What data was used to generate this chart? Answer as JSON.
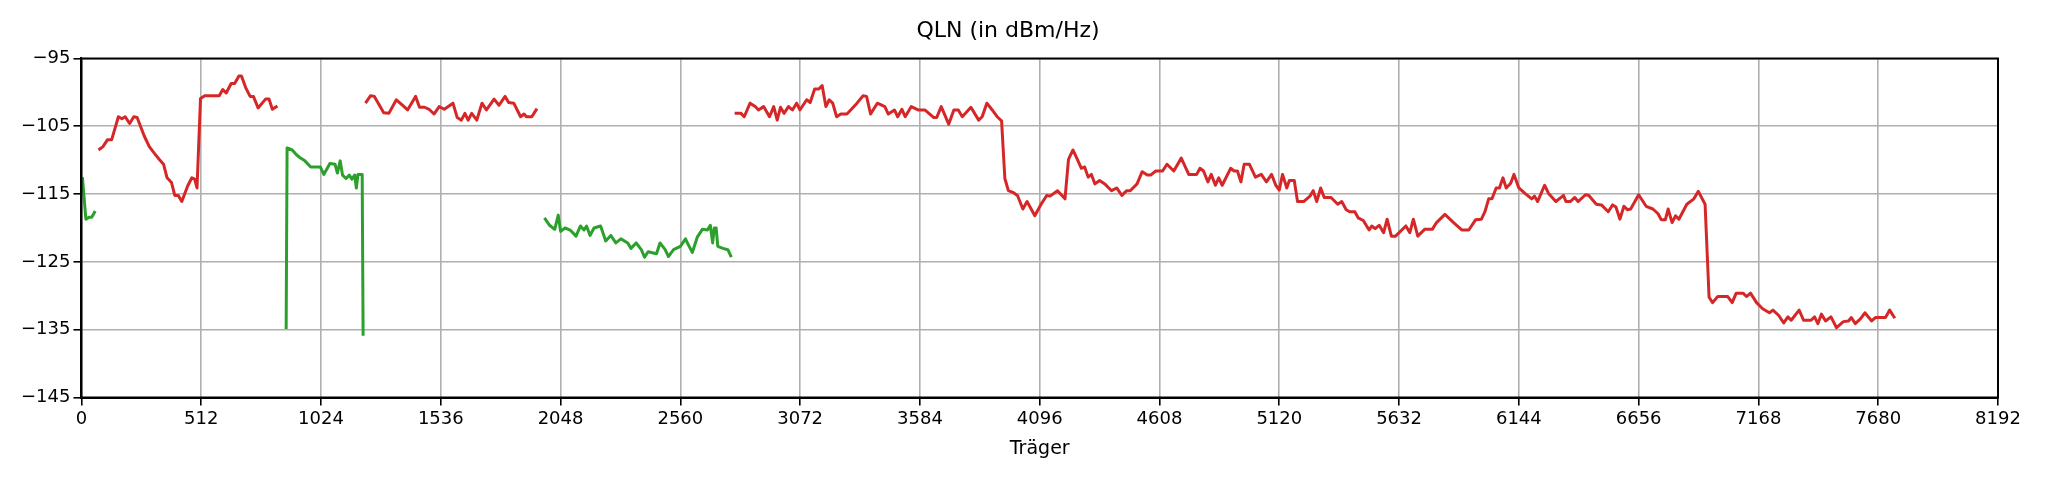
{
  "chart_data": {
    "type": "line",
    "title": "QLN (in dBm/Hz)",
    "xlabel": "Träger",
    "xlim": [
      0,
      8192
    ],
    "xticks": [
      0,
      512,
      1024,
      1536,
      2048,
      2560,
      3072,
      3584,
      4096,
      4608,
      5120,
      5632,
      6144,
      6656,
      7168,
      7680,
      8192
    ],
    "ylim": [
      -145,
      -95
    ],
    "yticks": [
      {
        "value": -145,
        "label": "−145"
      },
      {
        "value": -135,
        "label": "−135"
      },
      {
        "value": -125,
        "label": "−125"
      },
      {
        "value": -115,
        "label": "−115"
      },
      {
        "value": -105,
        "label": "−105"
      },
      {
        "value": -95,
        "label": "−95"
      }
    ],
    "grid": true,
    "legend": false,
    "series": [
      {
        "color": "#2ca02c",
        "x": [
          4,
          19,
          34,
          44,
          59,
          400,
          875,
          879,
          901,
          919,
          933,
          955,
          980,
          1021,
          1036,
          1062,
          1084,
          1094,
          1106,
          1116,
          1131,
          1145,
          1156,
          1168,
          1175,
          1182,
          1200,
          1204,
          1600,
          1979,
          2001,
          2023,
          2038,
          2048,
          2067,
          2089,
          2114,
          2133,
          2148,
          2159,
          2174,
          2191,
          2219,
          2241,
          2263,
          2284,
          2306,
          2335,
          2349,
          2371,
          2393,
          2407,
          2422,
          2458,
          2473,
          2495,
          2509,
          2531,
          2560,
          2582,
          2593,
          2611,
          2633,
          2654,
          2676,
          2688,
          2698,
          2705,
          2713,
          2720,
          2742,
          2763,
          2778
        ],
        "values": [
          -112.5,
          -118.7,
          -118.4,
          -118.4,
          -117.5,
          null,
          -134.9,
          -108.2,
          -108.5,
          -109.2,
          -109.6,
          -110.1,
          -111.0,
          -111.0,
          -112.1,
          -110.5,
          -110.6,
          -111.9,
          -110.1,
          -112.2,
          -112.7,
          -112.2,
          -112.8,
          -112.2,
          -114.1,
          -112.1,
          -112.1,
          -135.9,
          null,
          -118.5,
          -119.6,
          -120.2,
          -118.1,
          -120.5,
          -120.0,
          -120.3,
          -121.2,
          -119.7,
          -120.3,
          -119.7,
          -121.1,
          -120.0,
          -119.7,
          -121.9,
          -121.1,
          -122.2,
          -121.6,
          -122.2,
          -123.0,
          -122.2,
          -123.2,
          -124.3,
          -123.5,
          -123.8,
          -122.2,
          -123.2,
          -124.2,
          -123.2,
          -122.7,
          -121.6,
          -122.4,
          -123.6,
          -121.3,
          -120.2,
          -120.3,
          -119.6,
          -122.2,
          -120.0,
          -120.0,
          -122.7,
          -123.0,
          -123.2,
          -124.3
        ]
      },
      {
        "color": "#d62728",
        "x": [
          73,
          92,
          111,
          129,
          158,
          173,
          187,
          206,
          224,
          238,
          268,
          290,
          312,
          333,
          351,
          366,
          385,
          399,
          414,
          429,
          454,
          472,
          484,
          494,
          509,
          527,
          589,
          604,
          619,
          640,
          655,
          673,
          684,
          702,
          721,
          735,
          755,
          787,
          802,
          816,
          838,
          1000,
          1214,
          1236,
          1252,
          1270,
          1292,
          1314,
          1346,
          1372,
          1394,
          1413,
          1428,
          1445,
          1467,
          1486,
          1507,
          1529,
          1551,
          1588,
          1606,
          1624,
          1639,
          1653,
          1668,
          1690,
          1712,
          1731,
          1764,
          1785,
          1811,
          1826,
          1848,
          1877,
          1892,
          1902,
          1925,
          1947,
          2300,
          2792,
          2819,
          2833,
          2858,
          2880,
          2894,
          2916,
          2941,
          2959,
          2974,
          2988,
          3003,
          3022,
          3039,
          3057,
          3071,
          3100,
          3115,
          3134,
          3152,
          3166,
          3182,
          3196,
          3211,
          3228,
          3246,
          3272,
          3315,
          3341,
          3356,
          3373,
          3402,
          3434,
          3449,
          3475,
          3489,
          3507,
          3521,
          3547,
          3576,
          3605,
          3642,
          3656,
          3675,
          3707,
          3729,
          3748,
          3765,
          3802,
          3835,
          3850,
          3870,
          3893,
          3914,
          3933,
          3947,
          3962,
          3984,
          4001,
          4024,
          4042,
          4075,
          4100,
          4126,
          4140,
          4172,
          4204,
          4219,
          4238,
          4256,
          4274,
          4288,
          4303,
          4317,
          4332,
          4352,
          4374,
          4403,
          4425,
          4447,
          4468,
          4483,
          4512,
          4534,
          4556,
          4570,
          4592,
          4621,
          4640,
          4669,
          4701,
          4733,
          4767,
          4781,
          4796,
          4815,
          4829,
          4847,
          4861,
          4876,
          4912,
          4927,
          4941,
          4956,
          4970,
          4992,
          5018,
          5043,
          5065,
          5087,
          5105,
          5120,
          5134,
          5152,
          5163,
          5184,
          5198,
          5224,
          5251,
          5265,
          5280,
          5297,
          5312,
          5341,
          5370,
          5387,
          5406,
          5421,
          5443,
          5457,
          5479,
          5504,
          5515,
          5530,
          5547,
          5566,
          5581,
          5599,
          5617,
          5661,
          5678,
          5693,
          5712,
          5741,
          5774,
          5792,
          5828,
          5865,
          5901,
          5930,
          5959,
          5984,
          5999,
          6015,
          6029,
          6047,
          6061,
          6076,
          6090,
          6109,
          6123,
          6144,
          6170,
          6199,
          6211,
          6224,
          6254,
          6271,
          6302,
          6335,
          6345,
          6364,
          6383,
          6397,
          6429,
          6443,
          6475,
          6497,
          6526,
          6545,
          6559,
          6576,
          6593,
          6608,
          6622,
          6656,
          6688,
          6717,
          6739,
          6753,
          6770,
          6782,
          6799,
          6814,
          6828,
          6862,
          6892,
          6911,
          6940,
          6957,
          6972,
          6994,
          7037,
          7056,
          7073,
          7102,
          7117,
          7134,
          7160,
          7186,
          7215,
          7230,
          7255,
          7276,
          7294,
          7308,
          7342,
          7361,
          7393,
          7408,
          7422,
          7437,
          7455,
          7478,
          7502,
          7531,
          7553,
          7565,
          7582,
          7604,
          7623,
          7652,
          7668,
          7711,
          7729,
          7751
        ],
        "values": [
          -108.5,
          -108.0,
          -107.0,
          -107.0,
          -103.6,
          -103.9,
          -103.6,
          -104.6,
          -103.6,
          -103.7,
          -106.4,
          -108.0,
          -109.0,
          -109.9,
          -110.6,
          -112.6,
          -113.3,
          -115.2,
          -115.2,
          -116.1,
          -113.8,
          -112.6,
          -112.8,
          -114.1,
          -100.9,
          -100.5,
          -100.5,
          -99.6,
          -100.1,
          -98.7,
          -98.7,
          -97.6,
          -97.6,
          -99.3,
          -100.6,
          -100.6,
          -102.3,
          -101.0,
          -101.0,
          -102.5,
          -102.0,
          null,
          -101.6,
          -100.5,
          -100.6,
          -101.7,
          -103.0,
          -103.1,
          -101.1,
          -101.9,
          -102.6,
          -101.5,
          -100.6,
          -102.2,
          -102.2,
          -102.5,
          -103.2,
          -102.1,
          -102.5,
          -101.6,
          -103.7,
          -104.1,
          -103.1,
          -104.1,
          -103.1,
          -104.1,
          -101.6,
          -102.6,
          -101.0,
          -101.9,
          -100.6,
          -101.5,
          -101.6,
          -103.6,
          -103.2,
          -103.6,
          -103.6,
          -102.4,
          null,
          -103.1,
          -103.1,
          -103.6,
          -101.6,
          -102.1,
          -102.6,
          -102.1,
          -103.6,
          -102.1,
          -104.1,
          -102.2,
          -103.1,
          -102.1,
          -102.6,
          -101.6,
          -102.6,
          -101.1,
          -101.5,
          -99.5,
          -99.5,
          -99.0,
          -102.1,
          -101.1,
          -101.6,
          -103.6,
          -103.2,
          -103.2,
          -101.6,
          -100.5,
          -100.6,
          -103.2,
          -101.6,
          -102.1,
          -103.2,
          -102.6,
          -103.6,
          -102.5,
          -103.6,
          -102.1,
          -102.6,
          -102.6,
          -103.7,
          -103.7,
          -102.1,
          -104.7,
          -102.6,
          -102.6,
          -103.6,
          -102.2,
          -104.1,
          -103.6,
          -101.6,
          -102.6,
          -103.6,
          -104.2,
          -112.7,
          -114.5,
          -114.8,
          -115.2,
          -117.2,
          -116.1,
          -118.2,
          -116.6,
          -115.2,
          -115.3,
          -114.5,
          -115.7,
          -109.9,
          -108.5,
          -109.8,
          -111.2,
          -111.0,
          -112.5,
          -112.1,
          -113.5,
          -113.0,
          -113.5,
          -114.5,
          -114.1,
          -115.2,
          -114.5,
          -114.5,
          -113.5,
          -111.7,
          -112.2,
          -112.2,
          -111.6,
          -111.6,
          -110.6,
          -111.6,
          -109.7,
          -112.1,
          -112.1,
          -111.2,
          -111.6,
          -113.2,
          -112.1,
          -113.7,
          -112.6,
          -113.7,
          -111.2,
          -111.6,
          -111.6,
          -113.2,
          -110.6,
          -110.6,
          -112.5,
          -112.1,
          -113.2,
          -112.1,
          -113.7,
          -114.4,
          -112.1,
          -114.1,
          -113.0,
          -113.0,
          -116.1,
          -116.1,
          -115.3,
          -114.5,
          -116.1,
          -114.1,
          -115.5,
          -115.5,
          -116.5,
          -116.1,
          -117.3,
          -117.6,
          -117.6,
          -118.5,
          -118.9,
          -120.3,
          -119.7,
          -120.1,
          -119.6,
          -120.7,
          -118.7,
          -121.2,
          -121.2,
          -119.7,
          -120.7,
          -118.7,
          -121.2,
          -120.2,
          -120.2,
          -119.2,
          -118.0,
          -119.2,
          -120.3,
          -120.3,
          -118.8,
          -118.7,
          -117.6,
          -115.7,
          -115.7,
          -114.1,
          -114.1,
          -112.6,
          -114.1,
          -113.4,
          -112.1,
          -114.1,
          -114.9,
          -115.7,
          -115.3,
          -116.1,
          -113.7,
          -114.9,
          -116.1,
          -115.2,
          -116.1,
          -116.1,
          -115.5,
          -116.1,
          -115.1,
          -115.2,
          -116.5,
          -116.6,
          -117.6,
          -116.6,
          -116.9,
          -118.7,
          -116.8,
          -117.3,
          -117.2,
          -115.1,
          -116.8,
          -117.2,
          -117.9,
          -118.8,
          -118.8,
          -117.2,
          -119.2,
          -118.2,
          -118.7,
          -116.5,
          -115.7,
          -114.6,
          -116.5,
          -130.2,
          -131.0,
          -130.1,
          -130.1,
          -131.0,
          -129.6,
          -129.6,
          -130.1,
          -129.6,
          -131.0,
          -131.9,
          -132.5,
          -132.1,
          -132.9,
          -134.0,
          -133.1,
          -133.6,
          -132.1,
          -133.6,
          -133.6,
          -133.1,
          -134.1,
          -132.7,
          -133.7,
          -133.1,
          -134.7,
          -133.8,
          -133.7,
          -133.2,
          -134.1,
          -133.4,
          -132.5,
          -133.7,
          -133.2,
          -133.2,
          -132.1,
          -133.3
        ]
      }
    ]
  }
}
